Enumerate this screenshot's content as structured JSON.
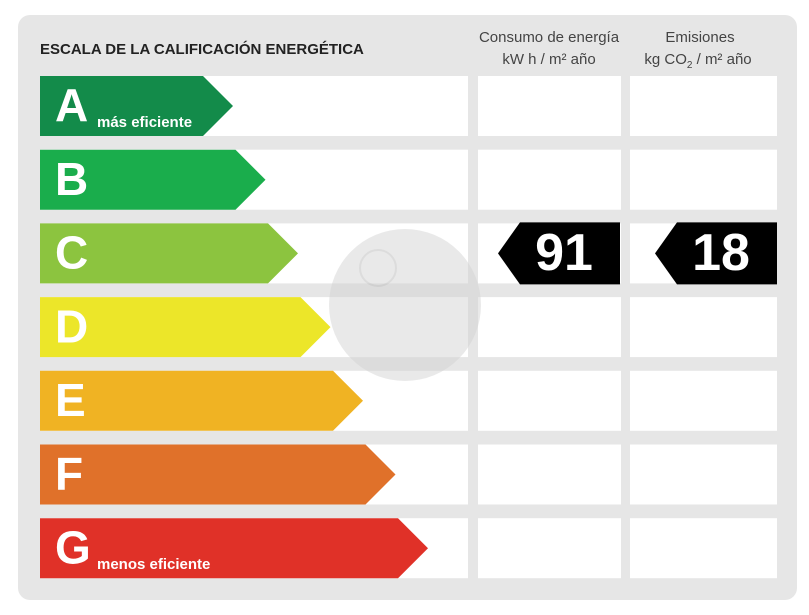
{
  "title": "ESCALA DE LA CALIFICACIÓN ENERGÉTICA",
  "columns": [
    {
      "title": "Consumo de energía",
      "unit": "kW h  / m² año"
    },
    {
      "title": "Emisiones",
      "unit": "kg CO",
      "unit_sub": "2",
      "unit_rest": " / m² año"
    }
  ],
  "classes": [
    {
      "letter": "A",
      "note": "más eficiente",
      "color": "#138b4a"
    },
    {
      "letter": "B",
      "color": "#1aad4c"
    },
    {
      "letter": "C",
      "color": "#8cc43f"
    },
    {
      "letter": "D",
      "color": "#ece629"
    },
    {
      "letter": "E",
      "color": "#f0b323"
    },
    {
      "letter": "F",
      "color": "#e0712a"
    },
    {
      "letter": "G",
      "note": "menos eficiente",
      "color": "#e03128"
    }
  ],
  "rating": {
    "class": "C",
    "consumption": "91",
    "emissions": "18"
  }
}
